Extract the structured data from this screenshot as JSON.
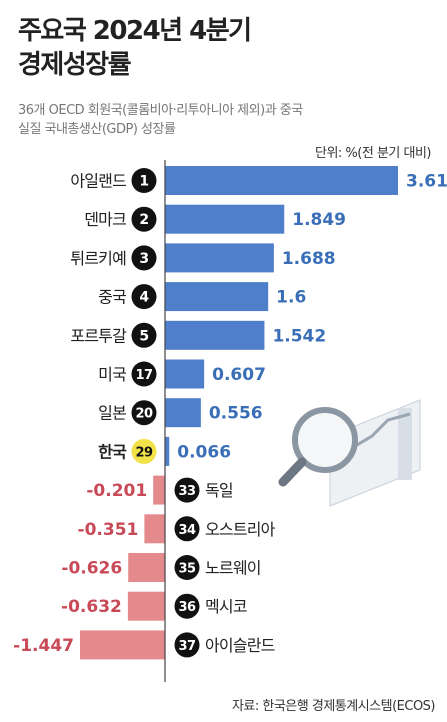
{
  "title_line1": "주요국 2024년 4분기",
  "title_line2": "경제성장률",
  "subtitle_line1": "36개 OECD 회원국(콜롬비아·리투아니아 제외)과 중국",
  "subtitle_line2": "실질 국내총생산(GDP) 성장률",
  "unit": "단위: %(전 분기 대비)",
  "source": "자료: 한국은행 경제통계시스템(ECOS)",
  "colors": {
    "positive": "#4f7fcb",
    "negative": "#e58a8c",
    "positive_text": "#3a6fb8",
    "negative_text": "#c94a57",
    "badge": "#111111",
    "korea_badge": "#f2e24a",
    "axis": "#444444"
  },
  "chart_data": {
    "type": "bar",
    "orientation": "horizontal",
    "categories": [
      "아일랜드",
      "덴마크",
      "튀르키예",
      "중국",
      "포르투갈",
      "미국",
      "일본",
      "한국",
      "독일",
      "오스트리아",
      "노르웨이",
      "멕시코",
      "아이슬란드"
    ],
    "ranks": [
      "1",
      "2",
      "3",
      "4",
      "5",
      "17",
      "20",
      "29",
      "33",
      "34",
      "35",
      "36",
      "37"
    ],
    "values": [
      3.613,
      1.849,
      1.688,
      1.6,
      1.542,
      0.607,
      0.556,
      0.066,
      -0.201,
      -0.351,
      -0.626,
      -0.632,
      -1.447
    ],
    "value_labels": [
      "3.613",
      "1.849",
      "1.688",
      "1.6",
      "1.542",
      "0.607",
      "0.556",
      "0.066",
      "-0.201",
      "-0.351",
      "-0.626",
      "-0.632",
      "-1.447"
    ],
    "highlight": "한국",
    "xlim": [
      -1.447,
      3.613
    ]
  }
}
